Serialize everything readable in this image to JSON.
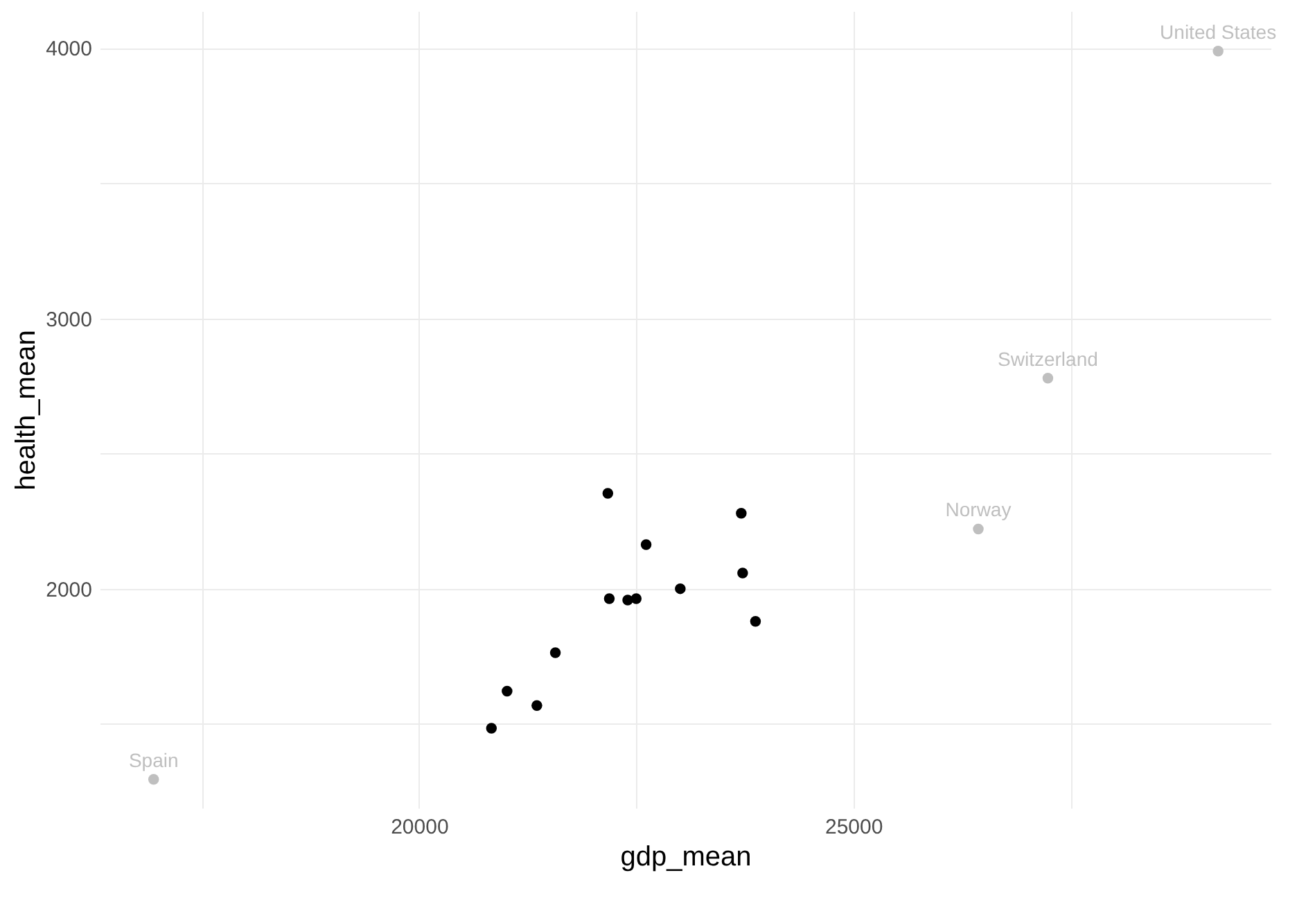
{
  "chart_data": {
    "type": "scatter",
    "xlabel": "gdp_mean",
    "ylabel": "health_mean",
    "xlim": [
      16324,
      29804
    ],
    "ylim": [
      1189,
      4137
    ],
    "xticks": [
      {
        "value": 17500,
        "label": null
      },
      20000,
      {
        "value": 22500,
        "label": null
      },
      25000,
      {
        "value": 27500,
        "label": null
      }
    ],
    "yticks": [
      {
        "value": 1500,
        "label": null
      },
      2000,
      {
        "value": 2500,
        "label": null
      },
      3000,
      {
        "value": 3500,
        "label": null
      },
      4000
    ],
    "grid": true,
    "marker": "circle",
    "series": [
      {
        "color": "#000000",
        "x": [
          20833,
          21013,
          21356,
          21569,
          22173,
          22190,
          22402,
          22500,
          22614,
          23007,
          23709,
          23725,
          23873
        ],
        "values": [
          1484,
          1621,
          1568,
          1763,
          2353,
          1963,
          1958,
          1963,
          2163,
          2000,
          2279,
          2058,
          1879
        ]
      },
      {
        "color": "#bfbfbf",
        "x": [
          16944,
          29199,
          27239,
          26438
        ],
        "values": [
          1295,
          3989,
          2779,
          2221
        ]
      }
    ],
    "annotations": [
      {
        "text": "Spain",
        "x": 16944,
        "y": 1295
      },
      {
        "text": "United States",
        "x": 29199,
        "y": 3989
      },
      {
        "text": "Switzerland",
        "x": 27239,
        "y": 2779
      },
      {
        "text": "Norway",
        "x": 26438,
        "y": 2221
      }
    ]
  }
}
